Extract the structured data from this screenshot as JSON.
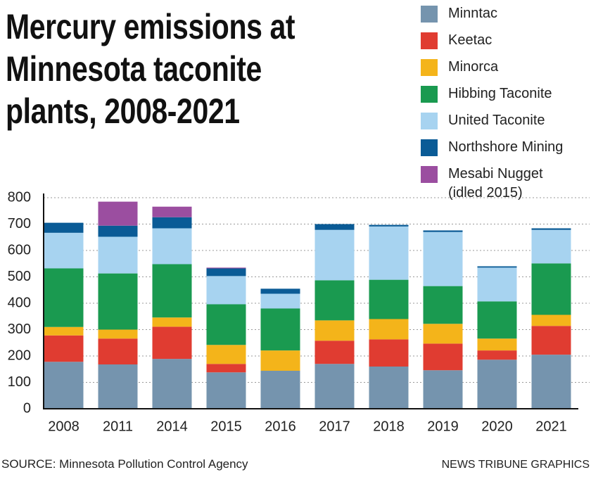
{
  "chart_data": {
    "type": "stacked_bar",
    "title": "Mercury emissions at Minnesota taconite plants, 2008-2021",
    "source": "SOURCE: Minnesota Pollution Control Agency",
    "credit": "NEWS TRIBUNE GRAPHICS",
    "categories": [
      "2008",
      "2011",
      "2014",
      "2015",
      "2016",
      "2017",
      "2018",
      "2019",
      "2020",
      "2021"
    ],
    "series": [
      {
        "name": "Minntac",
        "color": "#7594ae",
        "values": [
          178,
          168,
          189,
          138,
          144,
          170,
          160,
          146,
          186,
          205
        ]
      },
      {
        "name": "Keetac",
        "color": "#e03c31",
        "values": [
          100,
          98,
          122,
          32,
          0,
          88,
          103,
          101,
          35,
          109
        ]
      },
      {
        "name": "Minorca",
        "color": "#f4b41a",
        "values": [
          32,
          34,
          35,
          72,
          77,
          77,
          77,
          75,
          45,
          42
        ]
      },
      {
        "name": "Hibbing Taconite",
        "color": "#1a9a50",
        "values": [
          222,
          213,
          202,
          154,
          159,
          152,
          149,
          143,
          141,
          195
        ]
      },
      {
        "name": "United Taconite",
        "color": "#a7d3f0",
        "values": [
          135,
          139,
          136,
          107,
          56,
          191,
          202,
          205,
          128,
          127
        ]
      },
      {
        "name": "Northshore Mining",
        "color": "#0a5b96",
        "values": [
          38,
          42,
          42,
          29,
          19,
          22,
          6,
          6,
          5,
          6
        ]
      },
      {
        "name": "Mesabi Nugget (idled 2015)",
        "color": "#9b4ea0",
        "values": [
          0,
          91,
          40,
          3,
          0,
          0,
          0,
          0,
          0,
          0
        ]
      }
    ],
    "ylim": [
      0,
      800
    ],
    "yticks": [
      0,
      100,
      200,
      300,
      400,
      500,
      600,
      700,
      800
    ],
    "grid": true
  }
}
